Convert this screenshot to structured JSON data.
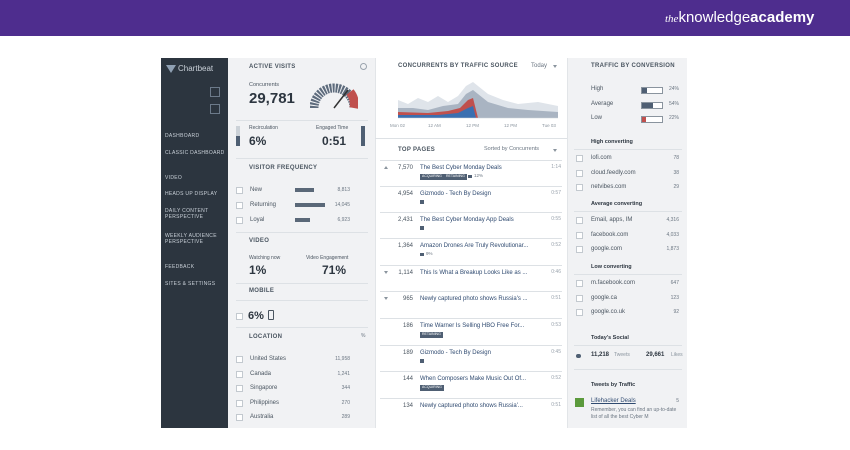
{
  "brand": {
    "prefix": "the",
    "main": "knowledge",
    "suffix": "academy"
  },
  "sidebar": {
    "logo": "Chartbeat",
    "nav": [
      "DASHBOARD",
      "CLASSIC DASHBOARD",
      "VIDEO",
      "HEADS UP DISPLAY",
      "DAILY CONTENT PERSPECTIVE",
      "WEEKLY AUDIENCE PERSPECTIVE",
      "FEEDBACK",
      "SITES & SETTINGS"
    ]
  },
  "active_visits": {
    "title": "ACTIVE VISITS",
    "concurrents_label": "Concurrents",
    "concurrents": "29,781",
    "recirculation_label": "Recirculation",
    "recirculation": "6%",
    "engaged_label": "Engaged Time",
    "engaged": "0:51"
  },
  "visitor_frequency": {
    "title": "VISITOR FREQUENCY",
    "rows": [
      {
        "label": "New",
        "value": "8,813"
      },
      {
        "label": "Returning",
        "value": "14,045"
      },
      {
        "label": "Loyal",
        "value": "6,923"
      }
    ]
  },
  "video": {
    "title": "VIDEO",
    "watching_label": "Watching now",
    "watching": "1%",
    "engagement_label": "Video Engagement",
    "engagement": "71%"
  },
  "mobile": {
    "title": "MOBILE",
    "value": "6%"
  },
  "location": {
    "title": "LOCATION",
    "unit": "%",
    "rows": [
      {
        "name": "United States",
        "value": "11,958"
      },
      {
        "name": "Canada",
        "value": "1,241"
      },
      {
        "name": "Singapore",
        "value": "344"
      },
      {
        "name": "Philippines",
        "value": "270"
      },
      {
        "name": "Australia",
        "value": "289"
      }
    ]
  },
  "traffic_source": {
    "title": "CONCURRENTS BY TRAFFIC SOURCE",
    "range": "Today",
    "axis": [
      "Mon 02",
      "12 AM",
      "12 PM",
      "12 PM",
      "Tue 03"
    ]
  },
  "top_pages": {
    "title": "TOP PAGES",
    "sort": "Sorted by Concurrents",
    "rows": [
      {
        "count": "7,570",
        "title": "The Best Cyber Monday Deals",
        "time": "1:14",
        "tags": [
          "ACQUIRING",
          "RETAINING"
        ],
        "video": "12%"
      },
      {
        "count": "4,954",
        "title": "Gizmodo - Tech By Design",
        "time": "0:57"
      },
      {
        "count": "2,431",
        "title": "The Best Cyber Monday App Deals",
        "time": "0:55"
      },
      {
        "count": "1,364",
        "title": "Amazon Drones Are Truly Revolutionar...",
        "time": "0:52",
        "video": "9%"
      },
      {
        "count": "1,114",
        "title": "This Is What a Breakup Looks Like as ...",
        "time": "0:46"
      },
      {
        "count": "965",
        "title": "Newly captured photo shows Russia's ...",
        "time": "0:51"
      },
      {
        "count": "186",
        "title": "Time Warner Is Selling HBO Free For...",
        "time": "0:53",
        "tags": [
          "RETAINING"
        ]
      },
      {
        "count": "189",
        "title": "Gizmodo - Tech By Design",
        "time": "0:45"
      },
      {
        "count": "144",
        "title": "When Composers Make Music Out Of...",
        "time": "0:52",
        "tags": [
          "ACQUIRING"
        ]
      },
      {
        "count": "134",
        "title": "Newly captured photo shows Russia'...",
        "time": "0:51"
      }
    ]
  },
  "conversion": {
    "title": "TRAFFIC BY CONVERSION",
    "levels": [
      {
        "label": "High",
        "value": "24%"
      },
      {
        "label": "Average",
        "value": "54%"
      },
      {
        "label": "Low",
        "value": "22%"
      }
    ],
    "groups": [
      {
        "title": "High converting",
        "rows": [
          {
            "name": "lofi.com",
            "value": "78"
          },
          {
            "name": "cloud.feedly.com",
            "value": "38"
          },
          {
            "name": "netvibes.com",
            "value": "29"
          }
        ]
      },
      {
        "title": "Average converting",
        "rows": [
          {
            "name": "Email, apps, IM",
            "value": "4,316"
          },
          {
            "name": "facebook.com",
            "value": "4,033"
          },
          {
            "name": "google.com",
            "value": "1,873"
          }
        ]
      },
      {
        "title": "Low converting",
        "rows": [
          {
            "name": "m.facebook.com",
            "value": "647"
          },
          {
            "name": "google.ca",
            "value": "123"
          },
          {
            "name": "google.co.uk",
            "value": "92"
          }
        ]
      }
    ]
  },
  "social": {
    "title": "Today's Social",
    "tweets": "11,218",
    "tweets_label": "Tweets",
    "likes": "29,661",
    "likes_label": "Likes"
  },
  "tweets_by_traffic": {
    "title": "Tweets by Traffic",
    "source": "Lifehacker Deals",
    "count": "5",
    "text": "Remember, you can find an up-to-date list of all the best Cyber M"
  }
}
